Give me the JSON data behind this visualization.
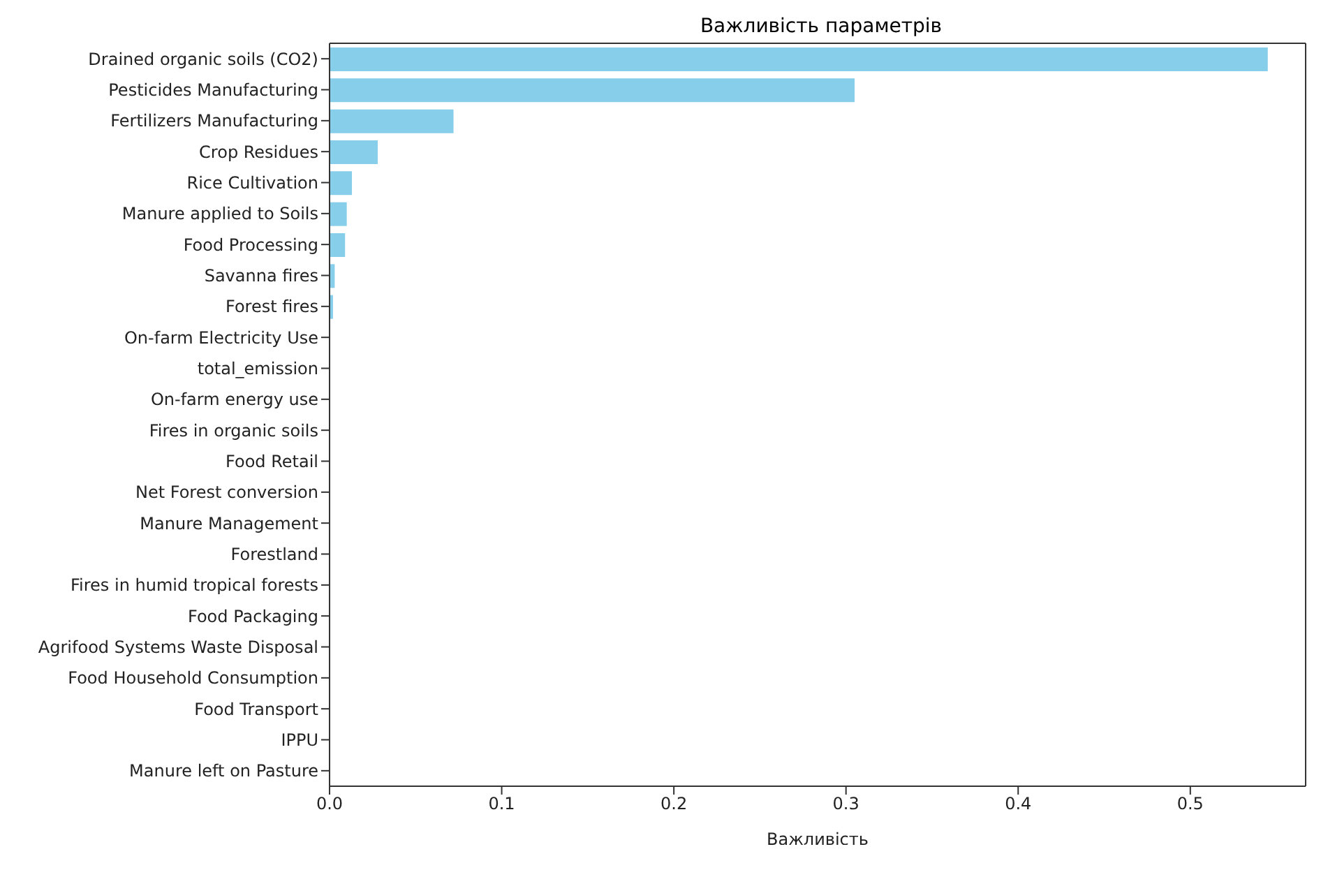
{
  "chart_data": {
    "type": "bar",
    "orientation": "horizontal",
    "title": "Важливість параметрів",
    "xlabel": "Важливість",
    "categories": [
      "Drained organic soils (CO2)",
      "Pesticides Manufacturing",
      "Fertilizers Manufacturing",
      "Crop Residues",
      "Rice Cultivation",
      "Manure applied to Soils",
      "Food Processing",
      "Savanna fires",
      "Forest fires",
      "On-farm Electricity Use",
      "total_emission",
      "On-farm energy use",
      "Fires in organic soils",
      "Food Retail",
      "Net Forest conversion",
      "Manure Management",
      "Forestland",
      "Fires in humid tropical forests",
      "Food Packaging",
      "Agrifood Systems Waste Disposal",
      "Food Household Consumption",
      "Food Transport",
      "IPPU",
      "Manure left on Pasture"
    ],
    "values": [
      0.545,
      0.305,
      0.072,
      0.028,
      0.013,
      0.01,
      0.009,
      0.003,
      0.002,
      0,
      0,
      0,
      0,
      0,
      0,
      0,
      0,
      0,
      0,
      0,
      0,
      0,
      0,
      0
    ],
    "color": "#87ceeb",
    "xlim": [
      0,
      0.567
    ],
    "xticks": [
      {
        "value": 0,
        "label": "0.0"
      },
      0.1,
      0.2,
      0.3,
      0.4,
      0.5
    ]
  }
}
